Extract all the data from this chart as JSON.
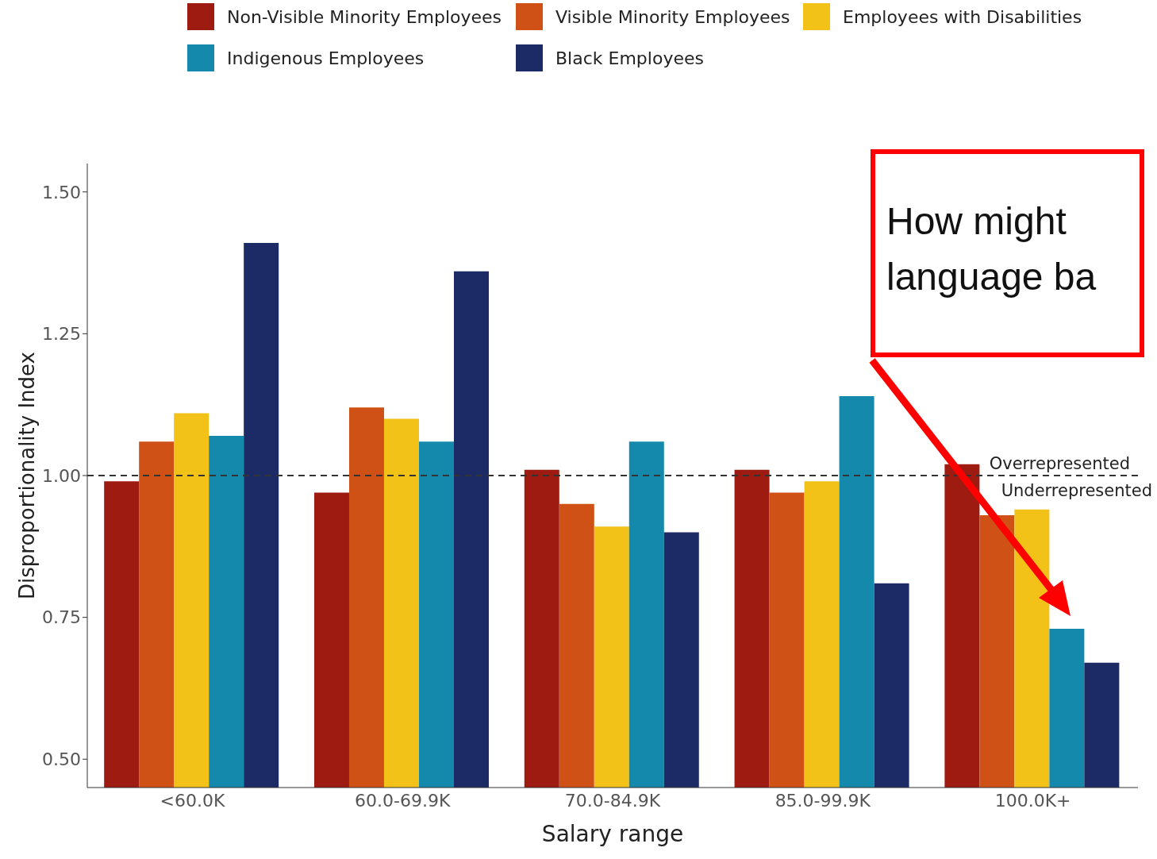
{
  "chart_data": {
    "type": "bar",
    "xlabel": "Salary range",
    "ylabel": "Disproportionality Index",
    "categories": [
      "<60.0K",
      "60.0-69.9K",
      "70.0-84.9K",
      "85.0-99.9K",
      "100.0K+"
    ],
    "series": [
      {
        "name": "Non-Visible Minority Employees",
        "color": "#9e1b12",
        "values": [
          0.99,
          0.97,
          1.01,
          1.01,
          1.02
        ]
      },
      {
        "name": "Visible Minority Employees",
        "color": "#d05116",
        "values": [
          1.06,
          1.12,
          0.95,
          0.97,
          0.93
        ]
      },
      {
        "name": "Employees with Disabilities",
        "color": "#f2c218",
        "values": [
          1.11,
          1.1,
          0.91,
          0.99,
          0.94
        ]
      },
      {
        "name": "Indigenous Employees",
        "color": "#1589ab",
        "values": [
          1.07,
          1.06,
          1.06,
          1.14,
          0.73
        ]
      },
      {
        "name": "Black Employees",
        "color": "#1c2a66",
        "values": [
          1.41,
          1.36,
          0.9,
          0.81,
          0.67
        ]
      }
    ],
    "ylim": [
      0.45,
      1.55
    ],
    "yticks": [
      {
        "value": 0.5,
        "label": "0.50"
      },
      {
        "value": 0.75,
        "label": "0.75"
      },
      {
        "value": 1.0,
        "label": "1.00"
      },
      {
        "value": 1.25,
        "label": "1.25"
      },
      {
        "value": 1.5,
        "label": "1.50"
      }
    ],
    "grid": false,
    "legend": "top",
    "ref_lines": [
      {
        "axis": "y",
        "value": 1.0,
        "label": "Overrepresented",
        "line_style": "dashed",
        "color": "#333333"
      }
    ],
    "annotations": [
      {
        "text": "Underrepresented",
        "x": "100.0K+",
        "y": 1.0
      },
      "How might language ba"
    ]
  }
}
